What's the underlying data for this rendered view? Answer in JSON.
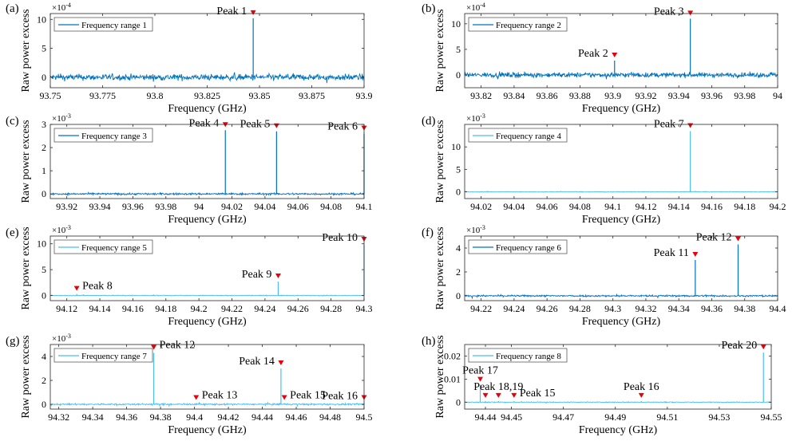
{
  "chart_data": [
    {
      "panel_label": "(a)",
      "type": "line",
      "title": "",
      "xlabel": "Frequency (GHz)",
      "ylabel": "Raw power excess",
      "exponent": "×10",
      "exponent_power": "-4",
      "xlim": [
        93.75,
        93.9
      ],
      "ylim": [
        -1.8,
        11
      ],
      "xticks": [
        93.75,
        93.775,
        93.8,
        93.825,
        93.85,
        93.875,
        93.9
      ],
      "xtick_labels": [
        "93.75",
        "93.775",
        "93.8",
        "93.825",
        "93.85",
        "93.875",
        "93.9"
      ],
      "yticks": [
        0,
        5,
        10
      ],
      "ytick_labels": [
        "0",
        "5",
        "10"
      ],
      "legend": "Frequency range 1",
      "legend_position": "top-left",
      "series_color": "#0072bd",
      "noise_amplitude": 0.9,
      "peaks": [
        {
          "label": "Peak 1",
          "x": 93.847,
          "y": 10.2,
          "label_side": "left"
        }
      ]
    },
    {
      "panel_label": "(b)",
      "type": "line",
      "title": "",
      "xlabel": "Frequency (GHz)",
      "ylabel": "Raw power excess",
      "exponent": "×10",
      "exponent_power": "-4",
      "xlim": [
        93.81,
        94.0
      ],
      "ylim": [
        -2.5,
        12
      ],
      "xticks": [
        93.82,
        93.84,
        93.86,
        93.88,
        93.9,
        93.92,
        93.94,
        93.96,
        93.98,
        94.0
      ],
      "xtick_labels": [
        "93.82",
        "93.84",
        "93.86",
        "93.88",
        "93.9",
        "93.92",
        "93.94",
        "93.96",
        "93.98",
        "94"
      ],
      "yticks": [
        0,
        5,
        10
      ],
      "ytick_labels": [
        "0",
        "5",
        "10"
      ],
      "legend": "Frequency range 2",
      "legend_position": "top-left",
      "series_color": "#0072bd",
      "noise_amplitude": 0.8,
      "peaks": [
        {
          "label": "Peak 2",
          "x": 93.901,
          "y": 2.8,
          "label_side": "left"
        },
        {
          "label": "Peak 3",
          "x": 93.947,
          "y": 11.0,
          "label_side": "left"
        }
      ]
    },
    {
      "panel_label": "(c)",
      "type": "line",
      "title": "",
      "xlabel": "Frequency (GHz)",
      "ylabel": "Raw power excess",
      "exponent": "×10",
      "exponent_power": "-3",
      "xlim": [
        93.91,
        94.1
      ],
      "ylim": [
        -0.2,
        3
      ],
      "xticks": [
        93.92,
        93.94,
        93.96,
        93.98,
        94.0,
        94.02,
        94.04,
        94.06,
        94.08,
        94.1
      ],
      "xtick_labels": [
        "93.92",
        "93.94",
        "93.96",
        "93.98",
        "94",
        "94.02",
        "94.04",
        "94.06",
        "94.08",
        "94.1"
      ],
      "yticks": [
        0,
        1,
        2,
        3
      ],
      "ytick_labels": [
        "0",
        "1",
        "2",
        "3"
      ],
      "legend": "Frequency range 3",
      "legend_position": "top-left",
      "series_color": "#0072bd",
      "noise_amplitude": 0.07,
      "peaks": [
        {
          "label": "Peak 4",
          "x": 94.016,
          "y": 2.75,
          "label_side": "left"
        },
        {
          "label": "Peak 5",
          "x": 94.047,
          "y": 2.7,
          "label_side": "left"
        },
        {
          "label": "Peak 6",
          "x": 94.1,
          "y": 2.6,
          "label_side": "left"
        }
      ]
    },
    {
      "panel_label": "(d)",
      "type": "line",
      "title": "",
      "xlabel": "Frequency (GHz)",
      "ylabel": "Raw power excess",
      "exponent": "×10",
      "exponent_power": "-3",
      "xlim": [
        94.01,
        94.2
      ],
      "ylim": [
        -1.5,
        15
      ],
      "xticks": [
        94.02,
        94.04,
        94.06,
        94.08,
        94.1,
        94.12,
        94.14,
        94.16,
        94.18,
        94.2
      ],
      "xtick_labels": [
        "94.02",
        "94.04",
        "94.06",
        "94.08",
        "94.1",
        "94.12",
        "94.14",
        "94.16",
        "94.18",
        "94.2"
      ],
      "yticks": [
        0,
        5,
        10
      ],
      "ytick_labels": [
        "0",
        "5",
        "10"
      ],
      "legend": "Frequency range 4",
      "legend_position": "top-left",
      "series_color": "#4dbeee",
      "noise_amplitude": 0.12,
      "peaks": [
        {
          "label": "Peak 7",
          "x": 94.147,
          "y": 13.5,
          "label_side": "left"
        }
      ]
    },
    {
      "panel_label": "(e)",
      "type": "line",
      "title": "",
      "xlabel": "Frequency (GHz)",
      "ylabel": "Raw power excess",
      "exponent": "×10",
      "exponent_power": "-3",
      "xlim": [
        94.11,
        94.3
      ],
      "ylim": [
        -1,
        11.5
      ],
      "xticks": [
        94.12,
        94.14,
        94.16,
        94.18,
        94.2,
        94.22,
        94.24,
        94.26,
        94.28,
        94.3
      ],
      "xtick_labels": [
        "94.12",
        "94.14",
        "94.16",
        "94.18",
        "94.2",
        "94.22",
        "94.24",
        "94.26",
        "94.28",
        "94.3"
      ],
      "yticks": [
        0,
        5,
        10
      ],
      "ytick_labels": [
        "0",
        "5",
        "10"
      ],
      "legend": "Frequency range 5",
      "legend_position": "top-left",
      "series_color": "#4dbeee",
      "noise_amplitude": 0.12,
      "peaks": [
        {
          "label": "Peak 8",
          "x": 94.126,
          "y": 0.3,
          "label_side": "right"
        },
        {
          "label": "Peak 9",
          "x": 94.248,
          "y": 2.7,
          "label_side": "left"
        },
        {
          "label": "Peak 10",
          "x": 94.3,
          "y": 9.8,
          "label_side": "left"
        }
      ]
    },
    {
      "panel_label": "(f)",
      "type": "line",
      "title": "",
      "xlabel": "Frequency (GHz)",
      "ylabel": "Raw power excess",
      "exponent": "×10",
      "exponent_power": "-3",
      "xlim": [
        94.21,
        94.4
      ],
      "ylim": [
        -0.4,
        5
      ],
      "xticks": [
        94.22,
        94.24,
        94.26,
        94.28,
        94.3,
        94.32,
        94.34,
        94.36,
        94.38,
        94.4
      ],
      "xtick_labels": [
        "94.22",
        "94.24",
        "94.26",
        "94.28",
        "94.3",
        "94.32",
        "94.34",
        "94.36",
        "94.38",
        "94.4"
      ],
      "yticks": [
        0,
        2,
        4
      ],
      "ytick_labels": [
        "0",
        "2",
        "4"
      ],
      "legend": "Frequency range 6",
      "legend_position": "top-left",
      "series_color": "#0072bd",
      "noise_amplitude": 0.12,
      "peaks": [
        {
          "label": "Peak 11",
          "x": 94.35,
          "y": 3.0,
          "label_side": "left"
        },
        {
          "label": "Peak 12",
          "x": 94.376,
          "y": 4.3,
          "label_side": "left"
        }
      ]
    },
    {
      "panel_label": "(g)",
      "type": "line",
      "title": "",
      "xlabel": "Frequency (GHz)",
      "ylabel": "Raw power excess",
      "exponent": "×10",
      "exponent_power": "-3",
      "xlim": [
        94.315,
        94.5
      ],
      "ylim": [
        -0.4,
        5
      ],
      "xticks": [
        94.32,
        94.34,
        94.36,
        94.38,
        94.4,
        94.42,
        94.44,
        94.46,
        94.48,
        94.5
      ],
      "xtick_labels": [
        "94.32",
        "94.34",
        "94.36",
        "94.38",
        "94.4",
        "94.42",
        "94.44",
        "94.46",
        "94.48",
        "94.5"
      ],
      "yticks": [
        0,
        2,
        4
      ],
      "ytick_labels": [
        "0",
        "2",
        "4"
      ],
      "legend": "Frequency range 7",
      "legend_position": "top-left",
      "series_color": "#4dbeee",
      "noise_amplitude": 0.12,
      "peaks": [
        {
          "label": "Peak 12",
          "x": 94.376,
          "y": 4.3,
          "label_side": "right"
        },
        {
          "label": "Peak 13",
          "x": 94.401,
          "y": 0.1,
          "label_side": "right"
        },
        {
          "label": "Peak 14",
          "x": 94.451,
          "y": 3.0,
          "label_side": "left"
        },
        {
          "label": "Peak 15",
          "x": 94.453,
          "y": 0.1,
          "label_side": "right"
        },
        {
          "label": "Peak 16",
          "x": 94.5,
          "y": 0.1,
          "label_side": "left"
        }
      ]
    },
    {
      "panel_label": "(h)",
      "type": "line",
      "title": "",
      "xlabel": "Frequency (GHz)",
      "ylabel": "Raw power excess",
      "exponent": "",
      "exponent_power": "",
      "xlim": [
        94.432,
        94.55
      ],
      "ylim": [
        -0.003,
        0.025
      ],
      "xticks": [
        94.44,
        94.45,
        94.47,
        94.49,
        94.51,
        94.53,
        94.55
      ],
      "xtick_labels": [
        "94.44",
        "94.45",
        "94.47",
        "94.49",
        "94.51",
        "94.53",
        "94.55"
      ],
      "yticks": [
        0,
        0.01,
        0.02
      ],
      "ytick_labels": [
        "0",
        "0.01",
        "0.02"
      ],
      "legend": "Frequency range 8",
      "legend_position": "top-left",
      "series_color": "#4dbeee",
      "noise_amplitude": 0.0003,
      "peaks": [
        {
          "label": "Peak 17",
          "x": 94.438,
          "y": 0.0075,
          "label_side": "center"
        },
        {
          "label": "",
          "x": 94.44,
          "y": 0.0005,
          "label_side": "none"
        },
        {
          "label": "Peak 18,19",
          "x": 94.445,
          "y": 0.0005,
          "label_side": "center"
        },
        {
          "label": "Peak 15",
          "x": 94.451,
          "y": 0.0005,
          "label_side": "right"
        },
        {
          "label": "Peak 16",
          "x": 94.5,
          "y": 0.0005,
          "label_side": "center"
        },
        {
          "label": "Peak 20",
          "x": 94.547,
          "y": 0.0215,
          "label_side": "left"
        }
      ]
    }
  ]
}
